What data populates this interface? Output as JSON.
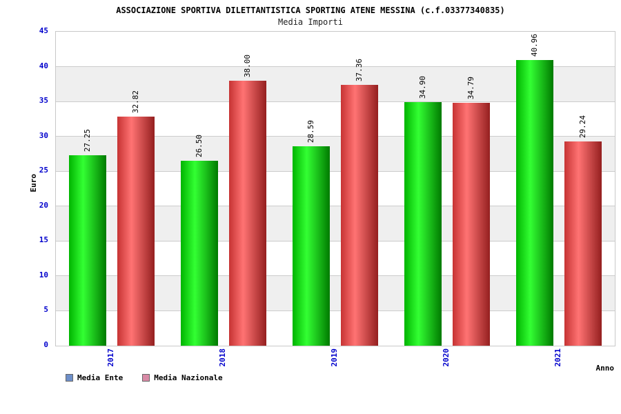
{
  "chart_data": {
    "type": "bar",
    "title": "ASSOCIAZIONE SPORTIVA DILETTANTISTICA SPORTING ATENE MESSINA (c.f.03377340835)",
    "subtitle": "Media Importi",
    "xlabel": "Anno",
    "ylabel": "Euro",
    "categories": [
      "2017",
      "2018",
      "2019",
      "2020",
      "2021"
    ],
    "series": [
      {
        "name": "Media Ente",
        "values": [
          27.25,
          26.5,
          28.59,
          34.9,
          40.96
        ],
        "gradient": [
          "#00b400",
          "#33ff33",
          "#007a00"
        ]
      },
      {
        "name": "Media Nazionale",
        "values": [
          32.82,
          38.0,
          37.36,
          34.79,
          29.24
        ],
        "gradient": [
          "#c63333",
          "#ff7373",
          "#941f1f"
        ]
      }
    ],
    "ylim": [
      0,
      45
    ],
    "ytick_step": 5,
    "grid": true,
    "legend_position": "bottom-left",
    "value_label_decimals": 2,
    "tick_color": "#0000cc"
  },
  "legend": {
    "items": [
      {
        "label": "Media Ente",
        "swatch": "#6d8fc9"
      },
      {
        "label": "Media Nazionale",
        "swatch": "#d98aa6"
      }
    ]
  }
}
